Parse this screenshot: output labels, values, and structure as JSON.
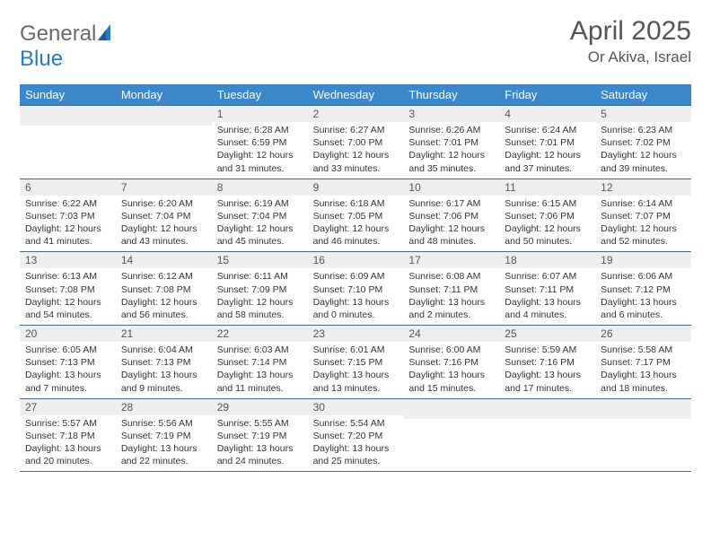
{
  "logo": {
    "word1": "General",
    "word2": "Blue"
  },
  "title": "April 2025",
  "subtitle": "Or Akiva, Israel",
  "colors": {
    "header_bg": "#3b87c8",
    "header_text": "#ffffff",
    "daynum_bg": "#eeeeee",
    "border": "#4a6a8a",
    "logo_gray": "#6a6a6a",
    "logo_blue": "#2a7ac0"
  },
  "weekdays": [
    "Sunday",
    "Monday",
    "Tuesday",
    "Wednesday",
    "Thursday",
    "Friday",
    "Saturday"
  ],
  "weeks": [
    [
      null,
      null,
      {
        "n": "1",
        "sr": "Sunrise: 6:28 AM",
        "ss": "Sunset: 6:59 PM",
        "d1": "Daylight: 12 hours",
        "d2": "and 31 minutes."
      },
      {
        "n": "2",
        "sr": "Sunrise: 6:27 AM",
        "ss": "Sunset: 7:00 PM",
        "d1": "Daylight: 12 hours",
        "d2": "and 33 minutes."
      },
      {
        "n": "3",
        "sr": "Sunrise: 6:26 AM",
        "ss": "Sunset: 7:01 PM",
        "d1": "Daylight: 12 hours",
        "d2": "and 35 minutes."
      },
      {
        "n": "4",
        "sr": "Sunrise: 6:24 AM",
        "ss": "Sunset: 7:01 PM",
        "d1": "Daylight: 12 hours",
        "d2": "and 37 minutes."
      },
      {
        "n": "5",
        "sr": "Sunrise: 6:23 AM",
        "ss": "Sunset: 7:02 PM",
        "d1": "Daylight: 12 hours",
        "d2": "and 39 minutes."
      }
    ],
    [
      {
        "n": "6",
        "sr": "Sunrise: 6:22 AM",
        "ss": "Sunset: 7:03 PM",
        "d1": "Daylight: 12 hours",
        "d2": "and 41 minutes."
      },
      {
        "n": "7",
        "sr": "Sunrise: 6:20 AM",
        "ss": "Sunset: 7:04 PM",
        "d1": "Daylight: 12 hours",
        "d2": "and 43 minutes."
      },
      {
        "n": "8",
        "sr": "Sunrise: 6:19 AM",
        "ss": "Sunset: 7:04 PM",
        "d1": "Daylight: 12 hours",
        "d2": "and 45 minutes."
      },
      {
        "n": "9",
        "sr": "Sunrise: 6:18 AM",
        "ss": "Sunset: 7:05 PM",
        "d1": "Daylight: 12 hours",
        "d2": "and 46 minutes."
      },
      {
        "n": "10",
        "sr": "Sunrise: 6:17 AM",
        "ss": "Sunset: 7:06 PM",
        "d1": "Daylight: 12 hours",
        "d2": "and 48 minutes."
      },
      {
        "n": "11",
        "sr": "Sunrise: 6:15 AM",
        "ss": "Sunset: 7:06 PM",
        "d1": "Daylight: 12 hours",
        "d2": "and 50 minutes."
      },
      {
        "n": "12",
        "sr": "Sunrise: 6:14 AM",
        "ss": "Sunset: 7:07 PM",
        "d1": "Daylight: 12 hours",
        "d2": "and 52 minutes."
      }
    ],
    [
      {
        "n": "13",
        "sr": "Sunrise: 6:13 AM",
        "ss": "Sunset: 7:08 PM",
        "d1": "Daylight: 12 hours",
        "d2": "and 54 minutes."
      },
      {
        "n": "14",
        "sr": "Sunrise: 6:12 AM",
        "ss": "Sunset: 7:08 PM",
        "d1": "Daylight: 12 hours",
        "d2": "and 56 minutes."
      },
      {
        "n": "15",
        "sr": "Sunrise: 6:11 AM",
        "ss": "Sunset: 7:09 PM",
        "d1": "Daylight: 12 hours",
        "d2": "and 58 minutes."
      },
      {
        "n": "16",
        "sr": "Sunrise: 6:09 AM",
        "ss": "Sunset: 7:10 PM",
        "d1": "Daylight: 13 hours",
        "d2": "and 0 minutes."
      },
      {
        "n": "17",
        "sr": "Sunrise: 6:08 AM",
        "ss": "Sunset: 7:11 PM",
        "d1": "Daylight: 13 hours",
        "d2": "and 2 minutes."
      },
      {
        "n": "18",
        "sr": "Sunrise: 6:07 AM",
        "ss": "Sunset: 7:11 PM",
        "d1": "Daylight: 13 hours",
        "d2": "and 4 minutes."
      },
      {
        "n": "19",
        "sr": "Sunrise: 6:06 AM",
        "ss": "Sunset: 7:12 PM",
        "d1": "Daylight: 13 hours",
        "d2": "and 6 minutes."
      }
    ],
    [
      {
        "n": "20",
        "sr": "Sunrise: 6:05 AM",
        "ss": "Sunset: 7:13 PM",
        "d1": "Daylight: 13 hours",
        "d2": "and 7 minutes."
      },
      {
        "n": "21",
        "sr": "Sunrise: 6:04 AM",
        "ss": "Sunset: 7:13 PM",
        "d1": "Daylight: 13 hours",
        "d2": "and 9 minutes."
      },
      {
        "n": "22",
        "sr": "Sunrise: 6:03 AM",
        "ss": "Sunset: 7:14 PM",
        "d1": "Daylight: 13 hours",
        "d2": "and 11 minutes."
      },
      {
        "n": "23",
        "sr": "Sunrise: 6:01 AM",
        "ss": "Sunset: 7:15 PM",
        "d1": "Daylight: 13 hours",
        "d2": "and 13 minutes."
      },
      {
        "n": "24",
        "sr": "Sunrise: 6:00 AM",
        "ss": "Sunset: 7:16 PM",
        "d1": "Daylight: 13 hours",
        "d2": "and 15 minutes."
      },
      {
        "n": "25",
        "sr": "Sunrise: 5:59 AM",
        "ss": "Sunset: 7:16 PM",
        "d1": "Daylight: 13 hours",
        "d2": "and 17 minutes."
      },
      {
        "n": "26",
        "sr": "Sunrise: 5:58 AM",
        "ss": "Sunset: 7:17 PM",
        "d1": "Daylight: 13 hours",
        "d2": "and 18 minutes."
      }
    ],
    [
      {
        "n": "27",
        "sr": "Sunrise: 5:57 AM",
        "ss": "Sunset: 7:18 PM",
        "d1": "Daylight: 13 hours",
        "d2": "and 20 minutes."
      },
      {
        "n": "28",
        "sr": "Sunrise: 5:56 AM",
        "ss": "Sunset: 7:19 PM",
        "d1": "Daylight: 13 hours",
        "d2": "and 22 minutes."
      },
      {
        "n": "29",
        "sr": "Sunrise: 5:55 AM",
        "ss": "Sunset: 7:19 PM",
        "d1": "Daylight: 13 hours",
        "d2": "and 24 minutes."
      },
      {
        "n": "30",
        "sr": "Sunrise: 5:54 AM",
        "ss": "Sunset: 7:20 PM",
        "d1": "Daylight: 13 hours",
        "d2": "and 25 minutes."
      },
      null,
      null,
      null
    ]
  ]
}
